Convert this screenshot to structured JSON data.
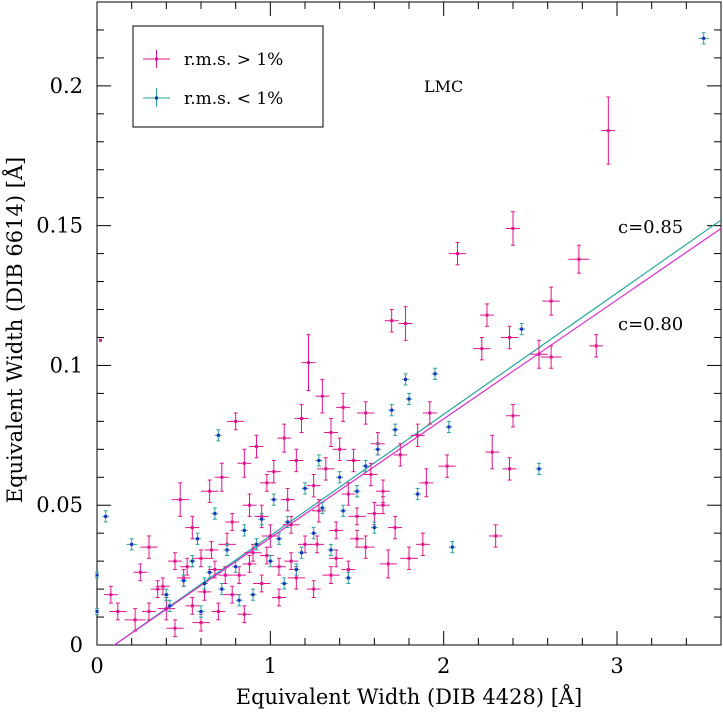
{
  "chart_data": {
    "type": "scatter",
    "title": "",
    "annotation": "LMC",
    "xlabel": "Equivalent Width (DIB 4428) [Å]",
    "ylabel": "Equivalent Width (DIB 6614) [Å]",
    "xlim": [
      0,
      3.6
    ],
    "ylim": [
      0,
      0.23
    ],
    "xticks": [
      "0",
      "1",
      "2",
      "3"
    ],
    "yticks": [
      "0",
      "0.05",
      "0.1",
      "0.15",
      "0.2"
    ],
    "xtick_values": [
      0,
      1,
      2,
      3
    ],
    "ytick_values": [
      0,
      0.05,
      0.1,
      0.15,
      0.2
    ],
    "grid": false,
    "legend_position": "top-left",
    "legend": [
      {
        "label": "r.m.s. > 1%",
        "color": "#e0158f"
      },
      {
        "label": "r.m.s. < 1%",
        "color": "#1a2fbf",
        "errcolor": "#2aa39b"
      }
    ],
    "lines": [
      {
        "label": "c=0.85",
        "color": "#23a89a",
        "x": [
          0.1,
          3.6
        ],
        "y": [
          0.0,
          0.152
        ]
      },
      {
        "label": "c=0.80",
        "color": "#e02ad0",
        "x": [
          0.1,
          3.6
        ],
        "y": [
          0.0,
          0.149
        ]
      }
    ],
    "series": [
      {
        "name": "r.m.s. > 1%",
        "color": "#e0158f",
        "points": [
          [
            0.02,
            0.109,
            0,
            0
          ],
          [
            0.08,
            0.018,
            0.04,
            0.003
          ],
          [
            0.12,
            0.012,
            0.05,
            0.003
          ],
          [
            0.22,
            0.009,
            0.06,
            0.004
          ],
          [
            0.3,
            0.035,
            0.05,
            0.004
          ],
          [
            0.35,
            0.02,
            0.04,
            0.003
          ],
          [
            0.4,
            0.013,
            0.05,
            0.004
          ],
          [
            0.45,
            0.03,
            0.04,
            0.003
          ],
          [
            0.48,
            0.052,
            0.05,
            0.006
          ],
          [
            0.5,
            0.024,
            0.04,
            0.003
          ],
          [
            0.55,
            0.042,
            0.04,
            0.004
          ],
          [
            0.6,
            0.031,
            0.05,
            0.003
          ],
          [
            0.62,
            0.019,
            0.04,
            0.003
          ],
          [
            0.65,
            0.055,
            0.05,
            0.004
          ],
          [
            0.68,
            0.027,
            0.04,
            0.003
          ],
          [
            0.72,
            0.06,
            0.04,
            0.005
          ],
          [
            0.75,
            0.036,
            0.05,
            0.004
          ],
          [
            0.78,
            0.044,
            0.04,
            0.003
          ],
          [
            0.8,
            0.08,
            0.05,
            0.003
          ],
          [
            0.82,
            0.025,
            0.04,
            0.003
          ],
          [
            0.85,
            0.065,
            0.04,
            0.005
          ],
          [
            0.88,
            0.05,
            0.04,
            0.004
          ],
          [
            0.9,
            0.033,
            0.05,
            0.003
          ],
          [
            0.92,
            0.071,
            0.04,
            0.004
          ],
          [
            0.95,
            0.046,
            0.04,
            0.004
          ],
          [
            0.98,
            0.058,
            0.04,
            0.003
          ],
          [
            1.0,
            0.039,
            0.05,
            0.004
          ],
          [
            1.02,
            0.062,
            0.04,
            0.004
          ],
          [
            1.05,
            0.028,
            0.04,
            0.003
          ],
          [
            1.08,
            0.074,
            0.04,
            0.005
          ],
          [
            1.1,
            0.052,
            0.04,
            0.004
          ],
          [
            1.12,
            0.043,
            0.05,
            0.003
          ],
          [
            1.15,
            0.066,
            0.04,
            0.004
          ],
          [
            1.18,
            0.081,
            0.04,
            0.005
          ],
          [
            1.2,
            0.036,
            0.04,
            0.003
          ],
          [
            1.22,
            0.101,
            0.04,
            0.01
          ],
          [
            1.25,
            0.057,
            0.04,
            0.004
          ],
          [
            1.28,
            0.048,
            0.04,
            0.004
          ],
          [
            1.3,
            0.089,
            0.04,
            0.006
          ],
          [
            1.32,
            0.063,
            0.05,
            0.004
          ],
          [
            1.35,
            0.076,
            0.04,
            0.005
          ],
          [
            1.38,
            0.041,
            0.04,
            0.003
          ],
          [
            1.4,
            0.07,
            0.04,
            0.004
          ],
          [
            1.42,
            0.085,
            0.04,
            0.005
          ],
          [
            1.45,
            0.054,
            0.04,
            0.004
          ],
          [
            1.48,
            0.066,
            0.04,
            0.004
          ],
          [
            1.5,
            0.046,
            0.05,
            0.003
          ],
          [
            1.55,
            0.083,
            0.05,
            0.004
          ],
          [
            1.58,
            0.061,
            0.04,
            0.004
          ],
          [
            1.62,
            0.072,
            0.04,
            0.004
          ],
          [
            1.65,
            0.05,
            0.04,
            0.003
          ],
          [
            1.68,
            0.029,
            0.05,
            0.005
          ],
          [
            1.7,
            0.116,
            0.04,
            0.004
          ],
          [
            1.72,
            0.042,
            0.04,
            0.004
          ],
          [
            1.78,
            0.115,
            0.04,
            0.006
          ],
          [
            1.8,
            0.031,
            0.05,
            0.004
          ],
          [
            1.85,
            0.075,
            0.04,
            0.004
          ],
          [
            1.88,
            0.036,
            0.04,
            0.004
          ],
          [
            1.9,
            0.058,
            0.04,
            0.005
          ],
          [
            1.92,
            0.083,
            0.04,
            0.004
          ],
          [
            2.02,
            0.064,
            0.05,
            0.004
          ],
          [
            2.08,
            0.14,
            0.05,
            0.004
          ],
          [
            2.22,
            0.106,
            0.05,
            0.004
          ],
          [
            2.25,
            0.118,
            0.04,
            0.004
          ],
          [
            2.28,
            0.069,
            0.04,
            0.006
          ],
          [
            2.3,
            0.039,
            0.04,
            0.004
          ],
          [
            2.38,
            0.11,
            0.05,
            0.004
          ],
          [
            2.4,
            0.149,
            0.04,
            0.006
          ],
          [
            2.4,
            0.082,
            0.04,
            0.004
          ],
          [
            2.38,
            0.063,
            0.04,
            0.004
          ],
          [
            2.55,
            0.104,
            0.05,
            0.005
          ],
          [
            2.62,
            0.103,
            0.06,
            0.004
          ],
          [
            2.62,
            0.123,
            0.05,
            0.005
          ],
          [
            2.78,
            0.138,
            0.06,
            0.005
          ],
          [
            2.88,
            0.107,
            0.04,
            0.004
          ],
          [
            2.95,
            0.184,
            0.04,
            0.012
          ],
          [
            0.3,
            0.012,
            0.04,
            0.003
          ],
          [
            0.45,
            0.006,
            0.05,
            0.003
          ],
          [
            0.55,
            0.014,
            0.04,
            0.003
          ],
          [
            0.6,
            0.008,
            0.05,
            0.003
          ],
          [
            0.7,
            0.012,
            0.04,
            0.003
          ],
          [
            0.78,
            0.018,
            0.05,
            0.003
          ],
          [
            0.85,
            0.011,
            0.04,
            0.003
          ],
          [
            0.95,
            0.022,
            0.05,
            0.003
          ],
          [
            1.05,
            0.017,
            0.04,
            0.003
          ],
          [
            1.15,
            0.024,
            0.05,
            0.004
          ],
          [
            1.25,
            0.02,
            0.04,
            0.003
          ],
          [
            1.35,
            0.025,
            0.05,
            0.003
          ],
          [
            1.45,
            0.027,
            0.04,
            0.003
          ],
          [
            1.55,
            0.035,
            0.05,
            0.004
          ],
          [
            1.6,
            0.047,
            0.04,
            0.004
          ],
          [
            0.38,
            0.021,
            0.04,
            0.003
          ],
          [
            0.52,
            0.028,
            0.04,
            0.003
          ],
          [
            0.66,
            0.034,
            0.04,
            0.003
          ],
          [
            0.74,
            0.025,
            0.04,
            0.003
          ],
          [
            0.88,
            0.029,
            0.04,
            0.003
          ],
          [
            0.98,
            0.032,
            0.04,
            0.003
          ],
          [
            1.12,
            0.03,
            0.04,
            0.003
          ],
          [
            1.27,
            0.036,
            0.04,
            0.003
          ],
          [
            1.38,
            0.031,
            0.04,
            0.003
          ],
          [
            1.5,
            0.038,
            0.04,
            0.003
          ],
          [
            1.65,
            0.055,
            0.04,
            0.004
          ],
          [
            1.75,
            0.068,
            0.04,
            0.004
          ],
          [
            0.25,
            0.026,
            0.04,
            0.003
          ]
        ]
      },
      {
        "name": "r.m.s. < 1%",
        "color": "#1a2fbf",
        "errcolor": "#2aa39b",
        "points": [
          [
            0.0,
            0.025,
            0.01,
            0.001
          ],
          [
            0.0,
            0.012,
            0.01,
            0.001
          ],
          [
            0.05,
            0.046,
            0.02,
            0.002
          ],
          [
            0.2,
            0.036,
            0.03,
            0.002
          ],
          [
            0.4,
            0.018,
            0.02,
            0.002
          ],
          [
            0.5,
            0.023,
            0.02,
            0.002
          ],
          [
            0.55,
            0.03,
            0.02,
            0.002
          ],
          [
            0.6,
            0.012,
            0.02,
            0.002
          ],
          [
            0.65,
            0.026,
            0.02,
            0.002
          ],
          [
            0.7,
            0.075,
            0.02,
            0.002
          ],
          [
            0.72,
            0.02,
            0.02,
            0.002
          ],
          [
            0.75,
            0.034,
            0.02,
            0.002
          ],
          [
            0.8,
            0.028,
            0.02,
            0.002
          ],
          [
            0.85,
            0.041,
            0.02,
            0.002
          ],
          [
            0.9,
            0.018,
            0.02,
            0.002
          ],
          [
            0.92,
            0.036,
            0.02,
            0.002
          ],
          [
            0.95,
            0.045,
            0.02,
            0.002
          ],
          [
            1.0,
            0.03,
            0.02,
            0.002
          ],
          [
            1.02,
            0.052,
            0.02,
            0.002
          ],
          [
            1.05,
            0.038,
            0.02,
            0.002
          ],
          [
            1.1,
            0.044,
            0.02,
            0.002
          ],
          [
            1.15,
            0.027,
            0.02,
            0.002
          ],
          [
            1.2,
            0.056,
            0.02,
            0.002
          ],
          [
            1.25,
            0.04,
            0.02,
            0.002
          ],
          [
            1.3,
            0.049,
            0.02,
            0.002
          ],
          [
            1.35,
            0.034,
            0.02,
            0.002
          ],
          [
            1.4,
            0.06,
            0.02,
            0.002
          ],
          [
            1.45,
            0.024,
            0.02,
            0.002
          ],
          [
            1.5,
            0.055,
            0.02,
            0.002
          ],
          [
            1.55,
            0.064,
            0.02,
            0.002
          ],
          [
            1.6,
            0.042,
            0.02,
            0.002
          ],
          [
            1.7,
            0.084,
            0.02,
            0.002
          ],
          [
            1.78,
            0.095,
            0.02,
            0.002
          ],
          [
            1.8,
            0.088,
            0.02,
            0.002
          ],
          [
            1.85,
            0.054,
            0.02,
            0.002
          ],
          [
            1.95,
            0.097,
            0.02,
            0.002
          ],
          [
            2.03,
            0.078,
            0.02,
            0.002
          ],
          [
            2.05,
            0.035,
            0.02,
            0.002
          ],
          [
            2.45,
            0.113,
            0.02,
            0.002
          ],
          [
            2.55,
            0.063,
            0.02,
            0.002
          ],
          [
            3.5,
            0.217,
            0.03,
            0.002
          ],
          [
            0.58,
            0.038,
            0.02,
            0.002
          ],
          [
            0.68,
            0.047,
            0.02,
            0.002
          ],
          [
            0.82,
            0.016,
            0.02,
            0.002
          ],
          [
            1.08,
            0.022,
            0.02,
            0.002
          ],
          [
            1.18,
            0.033,
            0.02,
            0.002
          ],
          [
            1.28,
            0.066,
            0.02,
            0.002
          ],
          [
            1.42,
            0.048,
            0.02,
            0.002
          ],
          [
            1.62,
            0.07,
            0.02,
            0.002
          ],
          [
            1.72,
            0.077,
            0.02,
            0.002
          ],
          [
            0.42,
            0.014,
            0.02,
            0.002
          ],
          [
            0.62,
            0.022,
            0.02,
            0.002
          ]
        ]
      }
    ]
  }
}
